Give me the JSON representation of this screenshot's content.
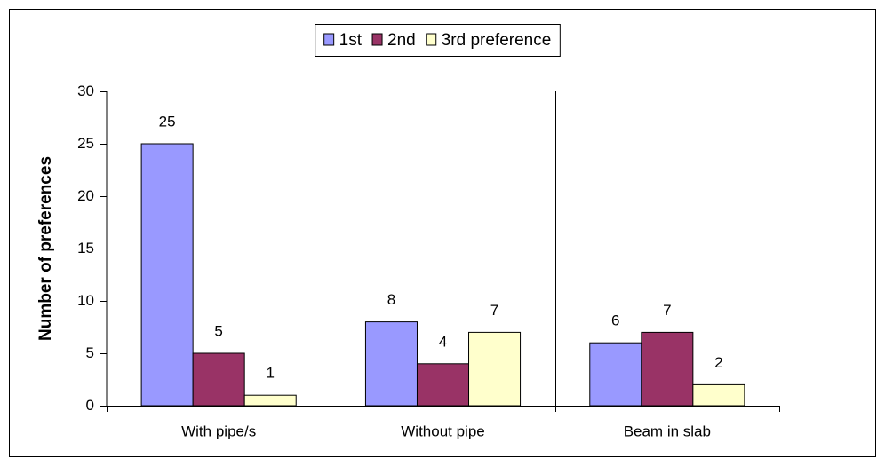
{
  "chart_data": {
    "type": "bar",
    "y_label": "Number of preferences",
    "categories": [
      "With pipe/s",
      "Without pipe",
      "Beam in slab"
    ],
    "series": [
      {
        "name": "1st",
        "color": "#9999ff",
        "values": [
          25,
          8,
          6
        ]
      },
      {
        "name": "2nd",
        "color": "#993366",
        "values": [
          5,
          4,
          7
        ]
      },
      {
        "name": "3rd preference",
        "color": "#ffffcc",
        "values": [
          1,
          7,
          2
        ]
      }
    ],
    "ylim": [
      0,
      30
    ],
    "yticks": [
      0,
      5,
      10,
      15,
      20,
      25,
      30
    ],
    "legend": "top",
    "data_labels": true
  }
}
